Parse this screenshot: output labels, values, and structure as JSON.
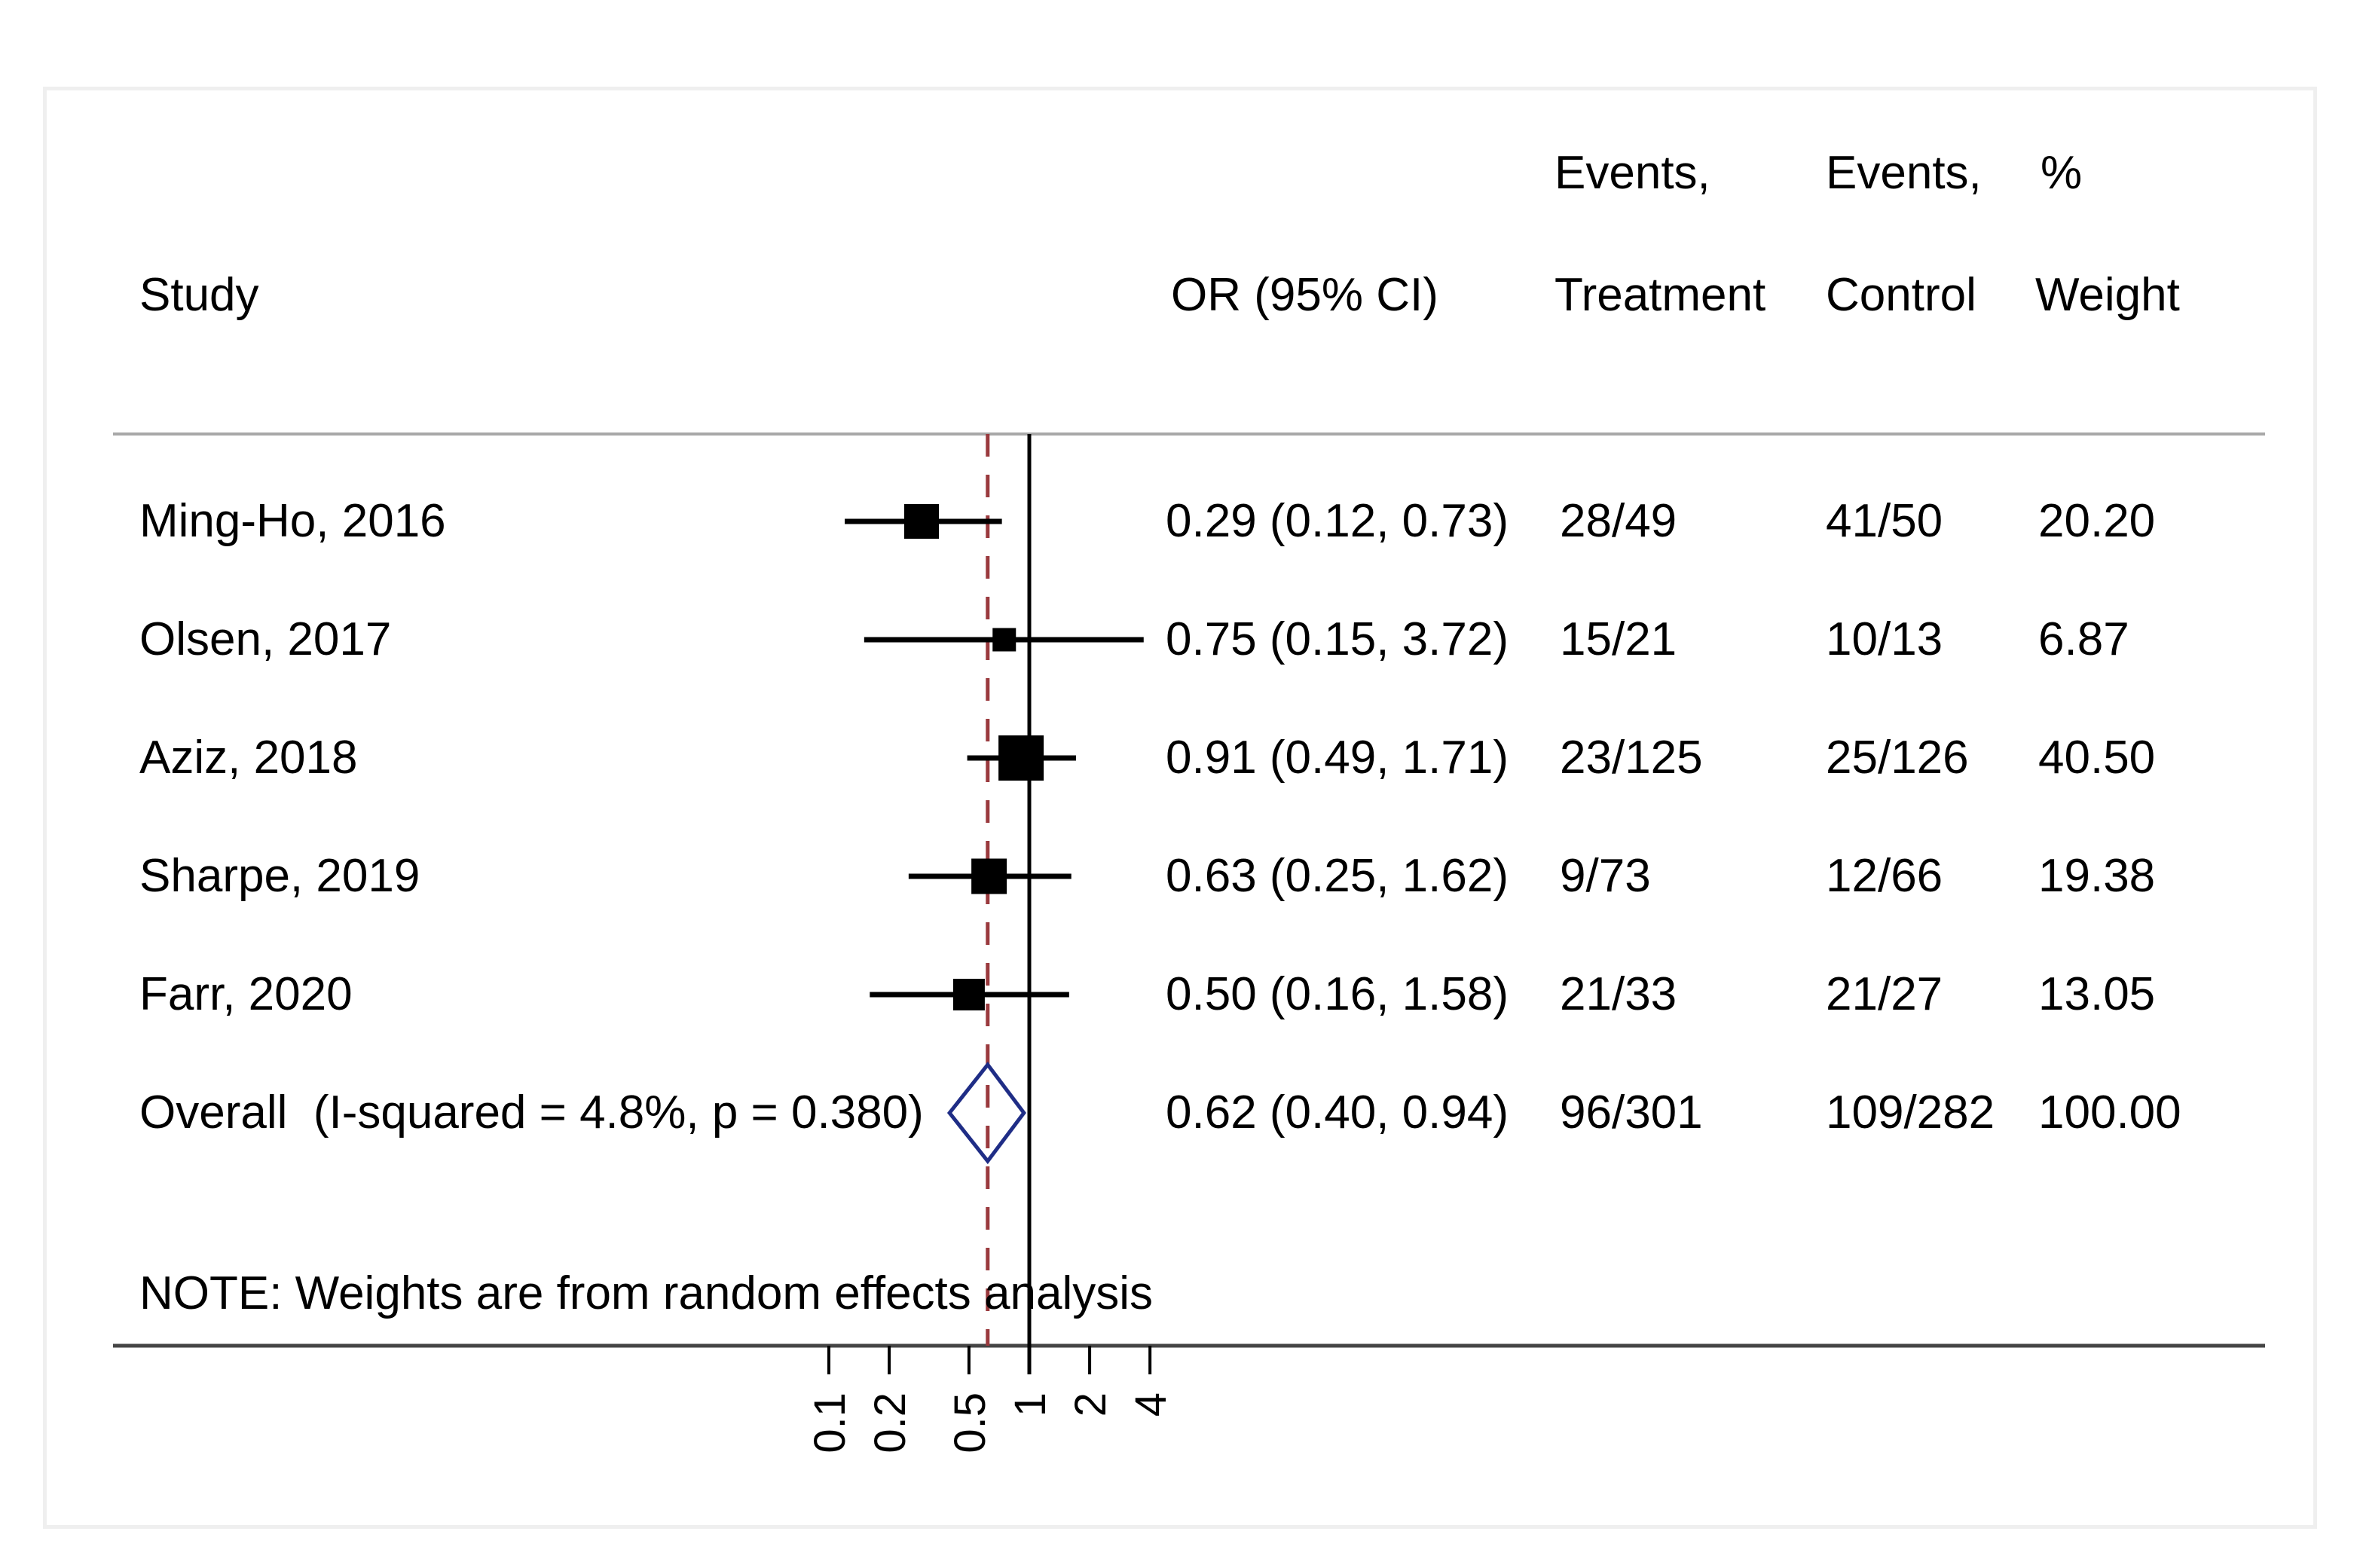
{
  "figure": {
    "background": "#ffffff",
    "panel_border_color": "#efefef"
  },
  "header": {
    "study": "Study",
    "or_ci": "OR (95% CI)",
    "treatment_line1": "Events,",
    "treatment_line2": "Treatment",
    "control_line1": "Events,",
    "control_line2": "Control",
    "weight_line1": "%",
    "weight_line2": "Weight"
  },
  "note": "NOTE: Weights are from random effects analysis",
  "chart_data": {
    "type": "forest",
    "x_scale": "log10",
    "xlabel": "",
    "axis_tick_values": [
      0.1,
      0.2,
      0.5,
      1,
      2,
      4
    ],
    "axis_tick_labels": [
      "0.1",
      "0.2",
      "0.5",
      "1",
      "2",
      "4"
    ],
    "axis_range": [
      0.1,
      4
    ],
    "null_line_value": 1,
    "overall_dashed_value": 0.62,
    "studies": [
      {
        "label": "Ming-Ho, 2016",
        "or": 0.29,
        "ci_low": 0.12,
        "ci_high": 0.73,
        "or_text": "0.29 (0.12, 0.73)",
        "events_treatment": "28/49",
        "events_control": "41/50",
        "weight": 20.2,
        "weight_text": "20.20",
        "marker_size": 46
      },
      {
        "label": "Olsen, 2017",
        "or": 0.75,
        "ci_low": 0.15,
        "ci_high": 3.72,
        "or_text": "0.75 (0.15, 3.72)",
        "events_treatment": "15/21",
        "events_control": "10/13",
        "weight": 6.87,
        "weight_text": "6.87",
        "marker_size": 31
      },
      {
        "label": "Aziz, 2018",
        "or": 0.91,
        "ci_low": 0.49,
        "ci_high": 1.71,
        "or_text": "0.91 (0.49, 1.71)",
        "events_treatment": "23/125",
        "events_control": "25/126",
        "weight": 40.5,
        "weight_text": "40.50",
        "marker_size": 60
      },
      {
        "label": "Sharpe, 2019",
        "or": 0.63,
        "ci_low": 0.25,
        "ci_high": 1.62,
        "or_text": "0.63 (0.25, 1.62)",
        "events_treatment": "9/73",
        "events_control": "12/66",
        "weight": 19.38,
        "weight_text": "19.38",
        "marker_size": 47
      },
      {
        "label": "Farr, 2020",
        "or": 0.5,
        "ci_low": 0.16,
        "ci_high": 1.58,
        "or_text": "0.50 (0.16, 1.58)",
        "events_treatment": "21/33",
        "events_control": "21/27",
        "weight": 13.05,
        "weight_text": "13.05",
        "marker_size": 42
      }
    ],
    "overall": {
      "label": "Overall  (I-squared = 4.8%, p = 0.380)",
      "or": 0.62,
      "ci_low": 0.4,
      "ci_high": 0.94,
      "or_text": "0.62 (0.40, 0.94)",
      "events_treatment": "96/301",
      "events_control": "109/282",
      "weight_text": "100.00"
    },
    "colors": {
      "marker": "#000000",
      "ci_line": "#000000",
      "null_line": "#000000",
      "overall_dashed": "#9a3a3e",
      "diamond": "#1f2d86",
      "header_rule": "#a8a8a8",
      "axis_rule": "#454545",
      "text": "#000000"
    },
    "legend": null,
    "grid": false
  }
}
